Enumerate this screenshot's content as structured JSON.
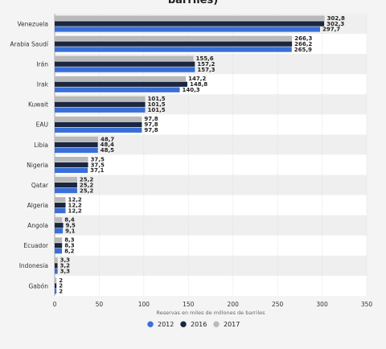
{
  "chart_data": {
    "type": "bar",
    "orientation": "horizontal",
    "title": "barriles)",
    "xlabel": "Reservas en miles de millones de barriles",
    "ylabel": "",
    "xlim": [
      0,
      350
    ],
    "xticks": [
      0,
      50,
      100,
      150,
      200,
      250,
      300,
      350
    ],
    "grid": true,
    "legend_position": "bottom",
    "categories": [
      "Venezuela",
      "Arabia Saudí",
      "Irán",
      "Irak",
      "Kuwait",
      "EAU",
      "Libia",
      "Nigeria",
      "Qatar",
      "Algeria",
      "Angola",
      "Ecuador",
      "Indonesia",
      "Gabón"
    ],
    "series": [
      {
        "name": "2012",
        "color": "#3a6fd8",
        "values": [
          297.7,
          265.9,
          157.3,
          140.3,
          101.5,
          97.8,
          48.5,
          37.1,
          25.2,
          12.2,
          9.1,
          8.2,
          3.3,
          2
        ]
      },
      {
        "name": "2016",
        "color": "#1b2640",
        "values": [
          302.3,
          266.2,
          157.2,
          148.8,
          101.5,
          97.8,
          48.4,
          37.5,
          25.2,
          12.2,
          9.5,
          8.3,
          3.2,
          2
        ]
      },
      {
        "name": "2017",
        "color": "#b9b9b9",
        "values": [
          302.8,
          266.3,
          155.6,
          147.2,
          101.5,
          97.8,
          48.7,
          37.5,
          25.2,
          12.2,
          8.4,
          8.3,
          3.3,
          2
        ]
      }
    ],
    "value_labels": [
      [
        "302,8",
        "302,3",
        "297,7"
      ],
      [
        "266,3",
        "266,2",
        "265,9"
      ],
      [
        "155,6",
        "157,2",
        "157,3"
      ],
      [
        "147,2",
        "148,8",
        "140,3"
      ],
      [
        "101,5",
        "101,5",
        "101,5"
      ],
      [
        "97,8",
        "97,8",
        "97,8"
      ],
      [
        "48,7",
        "48,4",
        "48,5"
      ],
      [
        "37,5",
        "37,5",
        "37,1"
      ],
      [
        "25,2",
        "25,2",
        "25,2"
      ],
      [
        "12,2",
        "12,2",
        "12,2"
      ],
      [
        "8,4",
        "9,5",
        "9,1"
      ],
      [
        "8,3",
        "8,3",
        "8,2"
      ],
      [
        "3,3",
        "3,2",
        "3,3"
      ],
      [
        "2",
        "2",
        "2"
      ]
    ]
  }
}
